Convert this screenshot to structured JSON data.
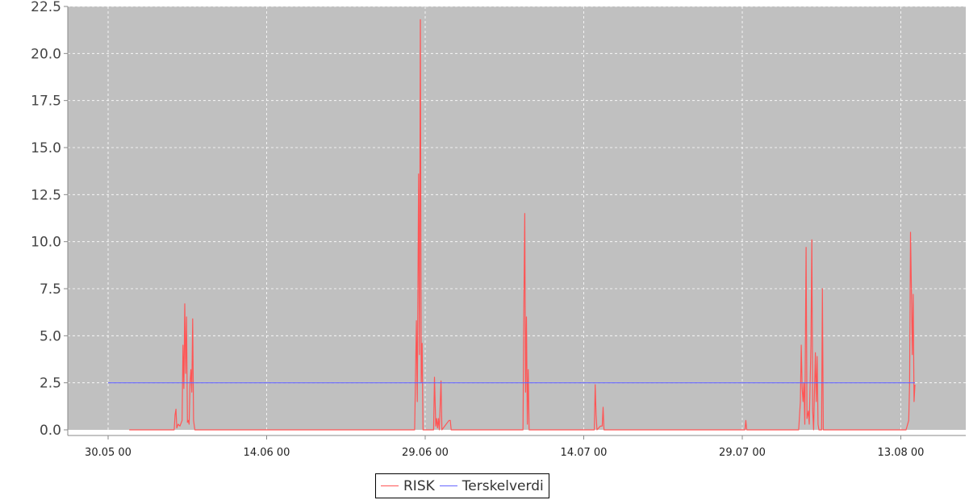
{
  "chart_data": {
    "type": "line",
    "title": "",
    "xlabel": "",
    "ylabel": "",
    "x_range": [
      "2000-05-28",
      "2000-08-17"
    ],
    "ylim": [
      0,
      22.5
    ],
    "y_ticks": [
      "0.0",
      "2.5",
      "5.0",
      "7.5",
      "10.0",
      "12.5",
      "15.0",
      "17.5",
      "20.0",
      "22.5"
    ],
    "x_ticks": [
      {
        "date": "2000-05-30",
        "label": "30.05 00"
      },
      {
        "date": "2000-06-14",
        "label": "14.06 00"
      },
      {
        "date": "2000-06-29",
        "label": "29.06 00"
      },
      {
        "date": "2000-07-14",
        "label": "14.07 00"
      },
      {
        "date": "2000-07-29",
        "label": "29.07 00"
      },
      {
        "date": "2000-08-13",
        "label": "13.08 00"
      }
    ],
    "grid": true,
    "legend_position": "bottom-center",
    "plot_background": "#c0c0c0",
    "series": [
      {
        "name": "RISK",
        "color": "#ff5555",
        "points": [
          [
            "2000-06-01 00:00",
            0
          ],
          [
            "2000-06-05 06:00",
            0
          ],
          [
            "2000-06-05 08:00",
            0.8
          ],
          [
            "2000-06-05 10:00",
            1.1
          ],
          [
            "2000-06-05 12:00",
            0.1
          ],
          [
            "2000-06-05 15:00",
            0.3
          ],
          [
            "2000-06-05 19:00",
            0.2
          ],
          [
            "2000-06-06 00:00",
            0.5
          ],
          [
            "2000-06-06 02:00",
            4.5
          ],
          [
            "2000-06-06 04:00",
            2.2
          ],
          [
            "2000-06-06 06:00",
            6.7
          ],
          [
            "2000-06-06 08:00",
            3.0
          ],
          [
            "2000-06-06 10:00",
            6.0
          ],
          [
            "2000-06-06 12:00",
            0.4
          ],
          [
            "2000-06-06 14:00",
            0.5
          ],
          [
            "2000-06-06 16:00",
            0.3
          ],
          [
            "2000-06-06 18:00",
            2.5
          ],
          [
            "2000-06-06 20:00",
            3.2
          ],
          [
            "2000-06-06 22:00",
            2.0
          ],
          [
            "2000-06-07 00:00",
            5.9
          ],
          [
            "2000-06-07 02:00",
            0.5
          ],
          [
            "2000-06-07 05:00",
            0
          ],
          [
            "2000-06-28 00:00",
            0
          ],
          [
            "2000-06-28 04:00",
            5.8
          ],
          [
            "2000-06-28 06:00",
            1.5
          ],
          [
            "2000-06-28 09:00",
            13.6
          ],
          [
            "2000-06-28 11:00",
            4.0
          ],
          [
            "2000-06-28 13:00",
            21.8
          ],
          [
            "2000-06-28 15:00",
            2.5
          ],
          [
            "2000-06-28 17:00",
            4.6
          ],
          [
            "2000-06-28 19:00",
            0
          ],
          [
            "2000-06-29 19:00",
            0
          ],
          [
            "2000-06-29 21:00",
            2.8
          ],
          [
            "2000-06-30 00:00",
            0.2
          ],
          [
            "2000-06-30 02:00",
            0.6
          ],
          [
            "2000-06-30 04:00",
            0.1
          ],
          [
            "2000-06-30 06:00",
            0.6
          ],
          [
            "2000-06-30 08:00",
            0
          ],
          [
            "2000-06-30 12:00",
            2.6
          ],
          [
            "2000-06-30 14:00",
            0
          ],
          [
            "2000-07-01 06:00",
            0.5
          ],
          [
            "2000-07-01 09:00",
            0.5
          ],
          [
            "2000-07-01 11:00",
            0
          ],
          [
            "2000-07-08 06:00",
            0
          ],
          [
            "2000-07-08 08:00",
            6.5
          ],
          [
            "2000-07-08 10:00",
            11.5
          ],
          [
            "2000-07-08 12:00",
            2.0
          ],
          [
            "2000-07-08 14:00",
            6.0
          ],
          [
            "2000-07-08 16:00",
            0.3
          ],
          [
            "2000-07-08 18:00",
            3.2
          ],
          [
            "2000-07-08 20:00",
            0
          ],
          [
            "2000-07-15 00:00",
            0
          ],
          [
            "2000-07-15 02:00",
            2.4
          ],
          [
            "2000-07-15 04:00",
            0.8
          ],
          [
            "2000-07-15 06:00",
            0
          ],
          [
            "2000-07-15 14:00",
            0.2
          ],
          [
            "2000-07-15 18:00",
            0.2
          ],
          [
            "2000-07-15 20:00",
            1.2
          ],
          [
            "2000-07-15 22:00",
            0
          ],
          [
            "2000-07-29 06:00",
            0
          ],
          [
            "2000-07-29 08:00",
            0.5
          ],
          [
            "2000-07-29 10:00",
            0
          ],
          [
            "2000-08-03 08:00",
            0
          ],
          [
            "2000-08-03 12:00",
            1.5
          ],
          [
            "2000-08-03 14:00",
            4.5
          ],
          [
            "2000-08-03 16:00",
            2.2
          ],
          [
            "2000-08-03 18:00",
            1.5
          ],
          [
            "2000-08-03 20:00",
            2.5
          ],
          [
            "2000-08-03 22:00",
            0.3
          ],
          [
            "2000-08-04 01:00",
            9.7
          ],
          [
            "2000-08-04 03:00",
            0.6
          ],
          [
            "2000-08-04 06:00",
            1.0
          ],
          [
            "2000-08-04 08:00",
            0.3
          ],
          [
            "2000-08-04 12:00",
            4.5
          ],
          [
            "2000-08-04 14:00",
            10.1
          ],
          [
            "2000-08-04 16:00",
            1.0
          ],
          [
            "2000-08-04 18:00",
            0
          ],
          [
            "2000-08-04 22:00",
            4.1
          ],
          [
            "2000-08-05 00:00",
            1.5
          ],
          [
            "2000-08-05 02:00",
            3.9
          ],
          [
            "2000-08-05 04:00",
            0.3
          ],
          [
            "2000-08-05 06:00",
            0
          ],
          [
            "2000-08-05 12:00",
            0
          ],
          [
            "2000-08-05 14:00",
            7.5
          ],
          [
            "2000-08-05 16:00",
            0
          ],
          [
            "2000-08-13 12:00",
            0
          ],
          [
            "2000-08-13 18:00",
            0.5
          ],
          [
            "2000-08-13 20:00",
            2.5
          ],
          [
            "2000-08-13 22:00",
            10.5
          ],
          [
            "2000-08-14 00:00",
            7.5
          ],
          [
            "2000-08-14 02:00",
            4.0
          ],
          [
            "2000-08-14 04:00",
            7.2
          ],
          [
            "2000-08-14 06:00",
            1.5
          ],
          [
            "2000-08-14 08:00",
            2.4
          ]
        ]
      },
      {
        "name": "Terskelverdi",
        "color": "#6666ff",
        "points": [
          [
            "2000-05-30 00:00",
            2.5
          ],
          [
            "2000-08-14 08:00",
            2.5
          ]
        ]
      }
    ]
  }
}
